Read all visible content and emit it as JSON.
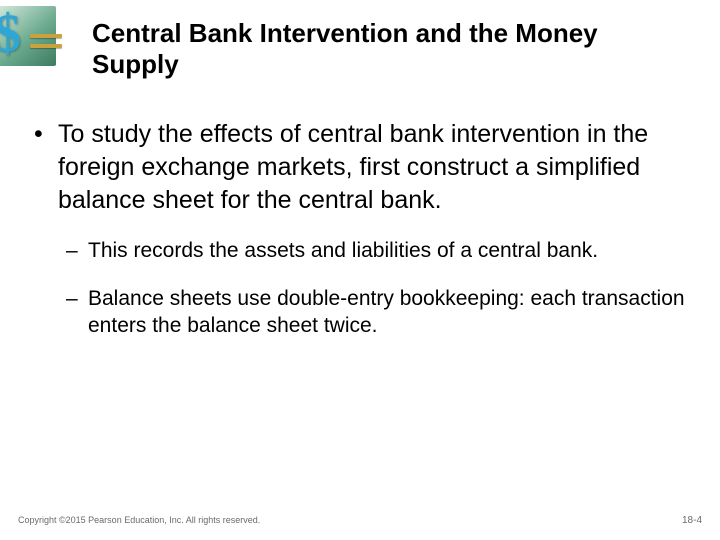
{
  "logo": {
    "dollar": "$",
    "bg_gradient_from": "#cfe6d7",
    "bg_gradient_to": "#3d7a5f",
    "dollar_color": "#2fa7d6",
    "bar_color": "#c9a23f"
  },
  "title": "Central Bank Intervention and the Money Supply",
  "bullets": {
    "level1": [
      "To study the effects of central bank intervention in the foreign exchange markets, first construct a simplified balance sheet for the central bank."
    ],
    "level2": [
      "This records the assets and liabilities of a central bank.",
      "Balance sheets use double-entry bookkeeping: each transaction enters the balance sheet twice."
    ]
  },
  "footer": {
    "copyright": "Copyright ©2015 Pearson Education, Inc. All rights reserved.",
    "page": "18-4"
  },
  "style": {
    "title_fontsize": 26,
    "body_fontsize_l1": 25,
    "body_fontsize_l2": 21,
    "text_color": "#000000",
    "footer_color": "#6b6b6b",
    "background": "#ffffff"
  }
}
